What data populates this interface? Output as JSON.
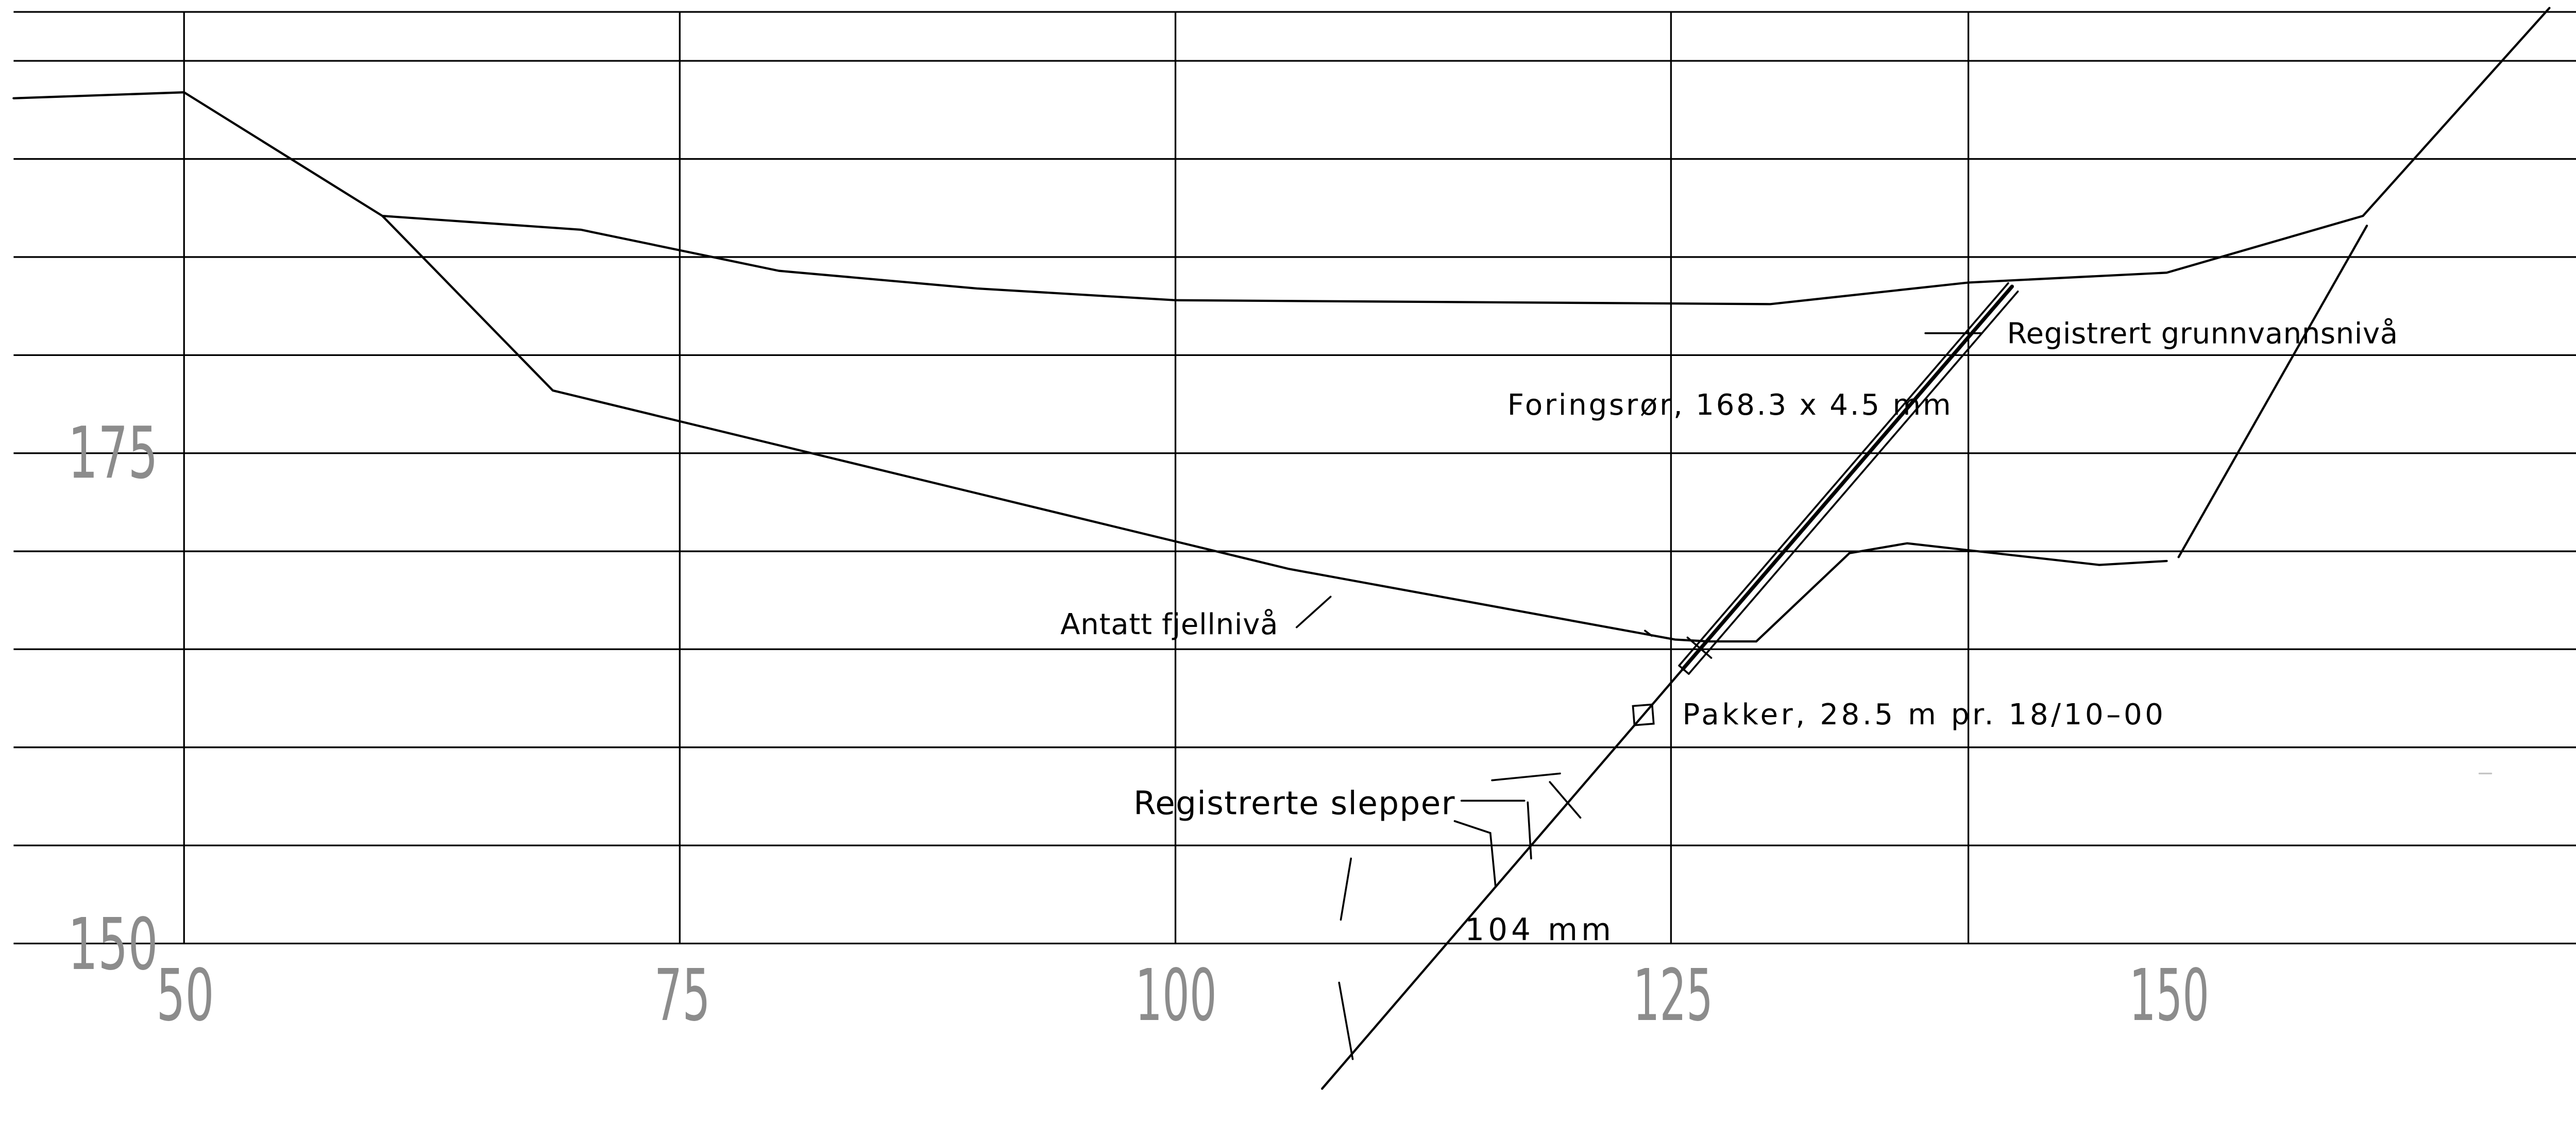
{
  "chart_data": {
    "type": "line",
    "xlim": [
      41.4,
      174.6
    ],
    "ylim": [
      150,
      197.5
    ],
    "grid": true,
    "x_ticks": [
      50,
      75,
      100,
      125,
      150
    ],
    "y_ticks": [
      150,
      175
    ],
    "series": [
      {
        "values": [
          [
            41.4,
            193.1
          ],
          [
            50,
            193.4
          ],
          [
            60,
            187.1
          ],
          [
            70,
            186.4
          ],
          [
            80,
            184.3
          ],
          [
            90,
            183.4
          ],
          [
            100,
            182.8
          ],
          [
            130,
            182.6
          ],
          [
            140,
            183.7
          ],
          [
            150,
            184.2
          ],
          [
            159.9,
            187.1
          ],
          [
            169.3,
            197.7
          ]
        ]
      },
      {
        "values": [
          [
            60,
            187.1
          ],
          [
            68.6,
            178.2
          ],
          [
            105.7,
            169.1
          ],
          [
            125.2,
            165.5
          ],
          [
            126.9,
            165.4
          ],
          [
            129.3,
            165.4
          ],
          [
            134,
            169.9
          ],
          [
            136.9,
            170.4
          ],
          [
            146.6,
            169.3
          ],
          [
            150,
            169.5
          ]
        ]
      },
      {
        "values": [
          [
            150.6,
            169.7
          ],
          [
            160.1,
            186.6
          ]
        ]
      },
      {
        "values": [
          [
            107.4,
            142.6
          ],
          [
            125.6,
            164.0
          ]
        ]
      },
      {
        "values": [
          [
            125.6,
            164.0
          ],
          [
            142.2,
            183.5
          ]
        ]
      }
    ],
    "annotations": [
      "Registrert grunnvannsnivå",
      "Foringsrør, 168.3 x 4.5 mm",
      "Antatt fjellnivå",
      "Pakker, 28.5 m pr. 18/10–00",
      "Registrerte slepper",
      "104 mm"
    ],
    "colors": {
      "lines": "#000000",
      "tick_labels": "#8c8c8c"
    }
  }
}
